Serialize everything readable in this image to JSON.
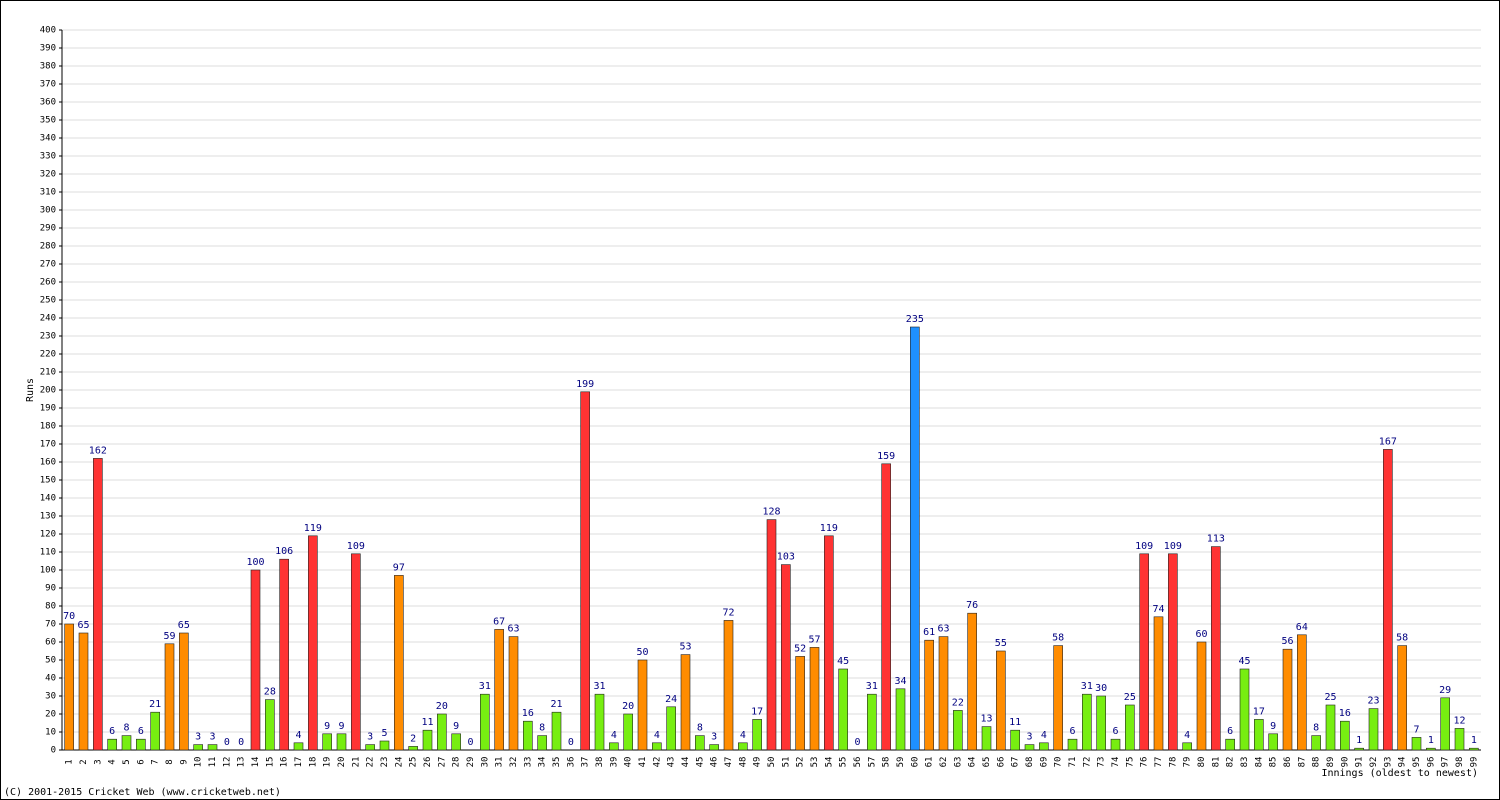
{
  "chart_data": {
    "type": "bar",
    "x_label": "Innings (oldest to newest)",
    "y_label": "Runs",
    "footer": "(C) 2001-2015 Cricket Web (www.cricketweb.net)",
    "categories": [
      1,
      2,
      3,
      4,
      5,
      6,
      7,
      8,
      9,
      10,
      11,
      12,
      13,
      14,
      15,
      16,
      17,
      18,
      19,
      20,
      21,
      22,
      23,
      24,
      25,
      26,
      27,
      28,
      29,
      30,
      31,
      32,
      33,
      34,
      35,
      36,
      37,
      38,
      39,
      40,
      41,
      42,
      43,
      44,
      45,
      46,
      47,
      48,
      49,
      50,
      51,
      52,
      53,
      54,
      55,
      56,
      57,
      58,
      59,
      60,
      61,
      62,
      63,
      64,
      65,
      66,
      67,
      68,
      69,
      70,
      71,
      72,
      73,
      74,
      75,
      76,
      77,
      78,
      79,
      80,
      81,
      82,
      83,
      84,
      85,
      86,
      87,
      88,
      89,
      90,
      91,
      92,
      93,
      94,
      95,
      96,
      97,
      98,
      99
    ],
    "values": [
      70,
      65,
      162,
      6,
      8,
      6,
      21,
      59,
      65,
      3,
      3,
      0,
      0,
      100,
      28,
      106,
      4,
      119,
      9,
      9,
      109,
      3,
      5,
      97,
      2,
      11,
      20,
      9,
      0,
      31,
      67,
      63,
      16,
      8,
      21,
      0,
      199,
      31,
      4,
      20,
      50,
      4,
      24,
      53,
      8,
      3,
      72,
      4,
      17,
      128,
      103,
      52,
      57,
      119,
      45,
      0,
      31,
      159,
      34,
      235,
      61,
      63,
      22,
      76,
      13,
      55,
      11,
      3,
      4,
      58,
      6,
      31,
      30,
      6,
      25,
      109,
      74,
      109,
      4,
      60,
      113,
      6,
      45,
      17,
      9,
      56,
      64,
      8,
      25,
      16,
      1,
      23,
      167,
      58,
      7,
      1,
      29,
      12,
      1
    ],
    "colors": [
      "#ff8c00",
      "#ff8c00",
      "#ff3333",
      "#77ee11",
      "#77ee11",
      "#77ee11",
      "#77ee11",
      "#ff8c00",
      "#ff8c00",
      "#77ee11",
      "#77ee11",
      "#77ee11",
      "#77ee11",
      "#ff3333",
      "#77ee11",
      "#ff3333",
      "#77ee11",
      "#ff3333",
      "#77ee11",
      "#77ee11",
      "#ff3333",
      "#77ee11",
      "#77ee11",
      "#ff8c00",
      "#77ee11",
      "#77ee11",
      "#77ee11",
      "#77ee11",
      "#77ee11",
      "#77ee11",
      "#ff8c00",
      "#ff8c00",
      "#77ee11",
      "#77ee11",
      "#77ee11",
      "#77ee11",
      "#ff3333",
      "#77ee11",
      "#77ee11",
      "#77ee11",
      "#ff8c00",
      "#77ee11",
      "#77ee11",
      "#ff8c00",
      "#77ee11",
      "#77ee11",
      "#ff8c00",
      "#77ee11",
      "#77ee11",
      "#ff3333",
      "#ff3333",
      "#ff8c00",
      "#ff8c00",
      "#ff3333",
      "#77ee11",
      "#77ee11",
      "#77ee11",
      "#ff3333",
      "#77ee11",
      "#1e90ff",
      "#ff8c00",
      "#ff8c00",
      "#77ee11",
      "#ff8c00",
      "#77ee11",
      "#ff8c00",
      "#77ee11",
      "#77ee11",
      "#77ee11",
      "#ff8c00",
      "#77ee11",
      "#77ee11",
      "#77ee11",
      "#77ee11",
      "#77ee11",
      "#ff3333",
      "#ff8c00",
      "#ff3333",
      "#77ee11",
      "#ff8c00",
      "#ff3333",
      "#77ee11",
      "#77ee11",
      "#77ee11",
      "#77ee11",
      "#ff8c00",
      "#ff8c00",
      "#77ee11",
      "#77ee11",
      "#77ee11",
      "#77ee11",
      "#77ee11",
      "#ff3333",
      "#ff8c00",
      "#77ee11",
      "#77ee11",
      "#77ee11",
      "#77ee11",
      "#77ee11"
    ],
    "ylim": [
      0,
      400
    ],
    "yticks": [
      0,
      10,
      20,
      30,
      40,
      50,
      60,
      70,
      80,
      90,
      100,
      110,
      120,
      130,
      140,
      150,
      160,
      170,
      180,
      190,
      200,
      210,
      220,
      230,
      240,
      250,
      260,
      270,
      280,
      290,
      300,
      310,
      320,
      330,
      340,
      350,
      360,
      370,
      380,
      390,
      400
    ],
    "grid": true
  }
}
